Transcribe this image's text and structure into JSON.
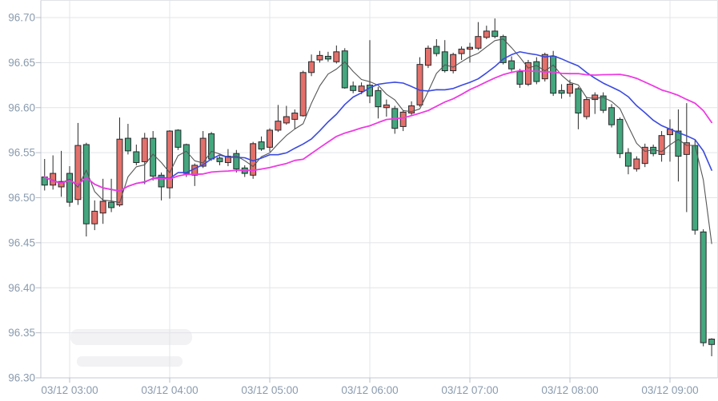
{
  "chart_data": {
    "type": "candlestick",
    "title": "",
    "interval_minutes": 5,
    "legend": "none",
    "grid": true,
    "x_axis": {
      "tick_labels": [
        "03/12 03:00",
        "03/12 04:00",
        "03/12 05:00",
        "03/12 06:00",
        "03/12 07:00",
        "03/12 08:00",
        "03/12 09:00"
      ],
      "tick_times": [
        "03:00",
        "04:00",
        "05:00",
        "06:00",
        "07:00",
        "08:00",
        "09:00"
      ]
    },
    "y_axis": {
      "tick_labels": [
        "96.70",
        "96.65",
        "96.60",
        "96.55",
        "96.50",
        "96.45",
        "96.40",
        "96.35",
        "96.30"
      ],
      "max": 96.7,
      "min": 96.3,
      "step": 0.05
    },
    "candle_format": [
      "time",
      "open",
      "high",
      "low",
      "close"
    ],
    "candles": [
      [
        "02:45",
        96.514,
        96.543,
        96.508,
        96.523
      ],
      [
        "02:50",
        96.527,
        96.547,
        96.509,
        96.514
      ],
      [
        "02:55",
        96.518,
        96.552,
        96.501,
        96.512
      ],
      [
        "03:00",
        96.495,
        96.535,
        96.49,
        96.527
      ],
      [
        "03:05",
        96.558,
        96.583,
        96.492,
        96.498
      ],
      [
        "03:10",
        96.471,
        96.561,
        96.457,
        96.559
      ],
      [
        "03:15",
        96.485,
        96.497,
        96.464,
        96.471
      ],
      [
        "03:20",
        96.496,
        96.521,
        96.471,
        96.483
      ],
      [
        "03:25",
        96.489,
        96.521,
        96.484,
        96.495
      ],
      [
        "03:30",
        96.565,
        96.589,
        96.49,
        96.492
      ],
      [
        "03:35",
        96.552,
        96.582,
        96.548,
        96.566
      ],
      [
        "03:40",
        96.539,
        96.559,
        96.536,
        96.551
      ],
      [
        "03:45",
        96.566,
        96.572,
        96.515,
        96.54
      ],
      [
        "03:50",
        96.524,
        96.574,
        96.519,
        96.566
      ],
      [
        "03:55",
        96.512,
        96.528,
        96.497,
        96.525
      ],
      [
        "04:00",
        96.574,
        96.575,
        96.499,
        96.511
      ],
      [
        "04:05",
        96.556,
        96.576,
        96.553,
        96.575
      ],
      [
        "04:10",
        96.527,
        96.56,
        96.523,
        96.559
      ],
      [
        "04:15",
        96.536,
        96.538,
        96.513,
        96.525
      ],
      [
        "04:20",
        96.566,
        96.574,
        96.533,
        96.535
      ],
      [
        "04:25",
        96.543,
        96.573,
        96.541,
        96.571
      ],
      [
        "04:30",
        96.54,
        96.546,
        96.536,
        96.544
      ],
      [
        "04:35",
        96.546,
        96.554,
        96.535,
        96.539
      ],
      [
        "04:40",
        96.532,
        96.553,
        96.528,
        96.549
      ],
      [
        "04:45",
        96.527,
        96.536,
        96.523,
        96.533
      ],
      [
        "04:50",
        96.56,
        96.562,
        96.521,
        96.525
      ],
      [
        "04:55",
        96.554,
        96.568,
        96.552,
        96.562
      ],
      [
        "05:00",
        96.575,
        96.577,
        96.551,
        96.556
      ],
      [
        "05:05",
        96.585,
        96.603,
        96.573,
        96.575
      ],
      [
        "05:10",
        96.59,
        96.602,
        96.581,
        96.583
      ],
      [
        "05:15",
        96.594,
        96.598,
        96.576,
        96.587
      ],
      [
        "05:20",
        96.639,
        96.641,
        96.59,
        96.591
      ],
      [
        "05:25",
        96.651,
        96.659,
        96.635,
        96.639
      ],
      [
        "05:30",
        96.658,
        96.663,
        96.65,
        96.653
      ],
      [
        "05:35",
        96.654,
        96.662,
        96.651,
        96.657
      ],
      [
        "05:40",
        96.662,
        96.669,
        96.649,
        96.651
      ],
      [
        "05:45",
        96.622,
        96.666,
        96.621,
        96.663
      ],
      [
        "05:50",
        96.619,
        96.629,
        96.616,
        96.624
      ],
      [
        "05:55",
        96.624,
        96.628,
        96.615,
        96.618
      ],
      [
        "06:00",
        96.613,
        96.675,
        96.605,
        96.625
      ],
      [
        "06:05",
        96.601,
        96.623,
        96.588,
        96.619
      ],
      [
        "06:10",
        96.603,
        96.609,
        96.59,
        96.6
      ],
      [
        "06:15",
        96.577,
        96.602,
        96.571,
        96.599
      ],
      [
        "06:20",
        96.595,
        96.597,
        96.574,
        96.579
      ],
      [
        "06:25",
        96.602,
        96.607,
        96.591,
        96.594
      ],
      [
        "06:30",
        96.648,
        96.656,
        96.601,
        96.603
      ],
      [
        "06:35",
        96.666,
        96.669,
        96.644,
        96.647
      ],
      [
        "06:40",
        96.66,
        96.676,
        96.657,
        96.668
      ],
      [
        "06:45",
        96.641,
        96.675,
        96.639,
        96.662
      ],
      [
        "06:50",
        96.659,
        96.661,
        96.638,
        96.641
      ],
      [
        "06:55",
        96.665,
        96.668,
        96.653,
        96.66
      ],
      [
        "07:00",
        96.667,
        96.672,
        96.65,
        96.665
      ],
      [
        "07:05",
        96.679,
        96.695,
        96.664,
        96.666
      ],
      [
        "07:10",
        96.685,
        96.691,
        96.676,
        96.678
      ],
      [
        "07:15",
        96.679,
        96.699,
        96.677,
        96.685
      ],
      [
        "07:20",
        96.65,
        96.681,
        96.648,
        96.679
      ],
      [
        "07:25",
        96.643,
        96.657,
        96.64,
        96.652
      ],
      [
        "07:30",
        96.626,
        96.643,
        96.622,
        96.64
      ],
      [
        "07:35",
        96.65,
        96.653,
        96.624,
        96.626
      ],
      [
        "07:40",
        96.629,
        96.656,
        96.626,
        96.651
      ],
      [
        "07:45",
        96.659,
        96.661,
        96.629,
        96.632
      ],
      [
        "07:50",
        96.616,
        96.663,
        96.613,
        96.657
      ],
      [
        "07:55",
        96.616,
        96.626,
        96.61,
        96.619
      ],
      [
        "08:00",
        96.626,
        96.631,
        96.612,
        96.616
      ],
      [
        "08:05",
        96.594,
        96.623,
        96.576,
        96.621
      ],
      [
        "08:10",
        96.609,
        96.612,
        96.587,
        96.59
      ],
      [
        "08:15",
        96.614,
        96.617,
        96.593,
        96.609
      ],
      [
        "08:20",
        96.597,
        96.617,
        96.594,
        96.613
      ],
      [
        "08:25",
        96.581,
        96.604,
        96.578,
        96.6
      ],
      [
        "08:30",
        96.549,
        96.589,
        96.544,
        96.587
      ],
      [
        "08:35",
        96.535,
        96.555,
        96.526,
        96.55
      ],
      [
        "08:40",
        96.543,
        96.546,
        96.529,
        96.532
      ],
      [
        "08:45",
        96.556,
        96.56,
        96.534,
        96.538
      ],
      [
        "08:50",
        96.549,
        96.559,
        96.546,
        96.556
      ],
      [
        "08:55",
        96.569,
        96.574,
        96.54,
        96.548
      ],
      [
        "09:00",
        96.576,
        96.587,
        96.54,
        96.57
      ],
      [
        "09:05",
        96.546,
        96.598,
        96.518,
        96.574
      ],
      [
        "09:10",
        96.561,
        96.605,
        96.484,
        96.548
      ],
      [
        "09:15",
        96.464,
        96.564,
        96.459,
        96.558
      ],
      [
        "09:20",
        96.339,
        96.465,
        96.335,
        96.462
      ],
      [
        "09:25",
        96.337,
        96.344,
        96.324,
        96.343
      ]
    ],
    "overlays": [
      {
        "name": "ma-fast",
        "method": "ema",
        "period": 4,
        "color": "#565656",
        "width": 1.1
      },
      {
        "name": "ma-medium",
        "method": "sma",
        "period": 12,
        "color": "#3a4ae0",
        "width": 1.6
      },
      {
        "name": "ma-slow",
        "method": "sma",
        "period": 26,
        "color": "#ee3be2",
        "width": 1.8
      }
    ],
    "style": {
      "background": "#ffffff",
      "up_color": "#44a77e",
      "down_color": "#e4706b",
      "body_border": "#26292c",
      "wick_color": "#2b2b2b",
      "grid_color": "#e3e4e8",
      "axis_color": "#c3c9d1",
      "tick_color": "#b9bfc8",
      "label_color": "#8a9bae",
      "border_color": "#e0e2e6",
      "watermark_color": "#f2f2f4"
    }
  }
}
